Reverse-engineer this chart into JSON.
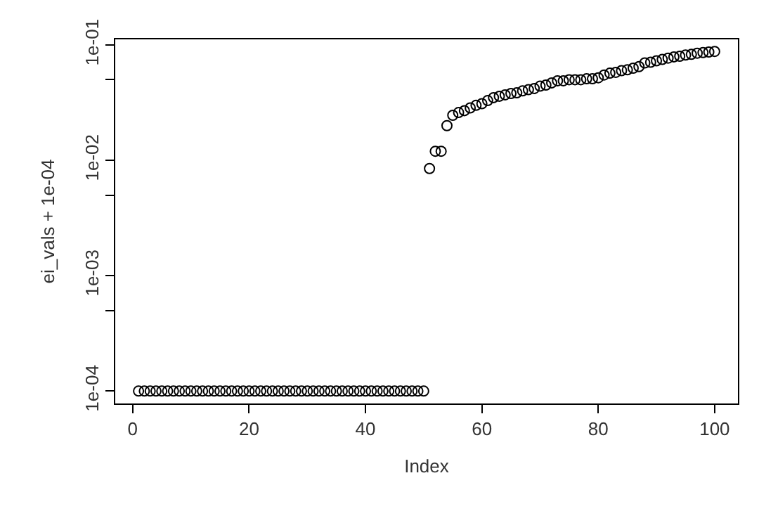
{
  "chart_data": {
    "type": "scatter",
    "xlabel": "Index",
    "ylabel": "ei_vals + 1e-04",
    "x": [
      1,
      2,
      3,
      4,
      5,
      6,
      7,
      8,
      9,
      10,
      11,
      12,
      13,
      14,
      15,
      16,
      17,
      18,
      19,
      20,
      21,
      22,
      23,
      24,
      25,
      26,
      27,
      28,
      29,
      30,
      31,
      32,
      33,
      34,
      35,
      36,
      37,
      38,
      39,
      40,
      41,
      42,
      43,
      44,
      45,
      46,
      47,
      48,
      49,
      50,
      51,
      52,
      53,
      54,
      55,
      56,
      57,
      58,
      59,
      60,
      61,
      62,
      63,
      64,
      65,
      66,
      67,
      68,
      69,
      70,
      71,
      72,
      73,
      74,
      75,
      76,
      77,
      78,
      79,
      80,
      81,
      82,
      83,
      84,
      85,
      86,
      87,
      88,
      89,
      90,
      91,
      92,
      93,
      94,
      95,
      96,
      97,
      98,
      99,
      100
    ],
    "series": [
      {
        "color": "#000000",
        "values": [
          0.0001,
          0.0001,
          0.0001,
          0.0001,
          0.0001,
          0.0001,
          0.0001,
          0.0001,
          0.0001,
          0.0001,
          0.0001,
          0.0001,
          0.0001,
          0.0001,
          0.0001,
          0.0001,
          0.0001,
          0.0001,
          0.0001,
          0.0001,
          0.0001,
          0.0001,
          0.0001,
          0.0001,
          0.0001,
          0.0001,
          0.0001,
          0.0001,
          0.0001,
          0.0001,
          0.0001,
          0.0001,
          0.0001,
          0.0001,
          0.0001,
          0.0001,
          0.0001,
          0.0001,
          0.0001,
          0.0001,
          0.0001,
          0.0001,
          0.0001,
          0.0001,
          0.0001,
          0.0001,
          0.0001,
          0.0001,
          0.0001,
          0.0001,
          0.0085,
          0.012,
          0.012,
          0.02,
          0.0246,
          0.026,
          0.027,
          0.0285,
          0.03,
          0.031,
          0.033,
          0.035,
          0.036,
          0.037,
          0.038,
          0.0385,
          0.04,
          0.041,
          0.042,
          0.044,
          0.045,
          0.047,
          0.049,
          0.049,
          0.05,
          0.05,
          0.05,
          0.051,
          0.051,
          0.052,
          0.055,
          0.057,
          0.058,
          0.06,
          0.061,
          0.063,
          0.065,
          0.07,
          0.071,
          0.073,
          0.075,
          0.077,
          0.079,
          0.08,
          0.082,
          0.083,
          0.085,
          0.086,
          0.087,
          0.088
        ]
      }
    ],
    "xlim": [
      -3,
      104
    ],
    "xticks": [
      0,
      20,
      40,
      60,
      80,
      100
    ],
    "ylim": [
      7.8e-05,
      0.112
    ],
    "yticks": [
      {
        "value": 0.0001,
        "label": "1e-04"
      },
      {
        "value": 0.0005,
        "label": null
      },
      {
        "value": 0.001,
        "label": "1e-03"
      },
      {
        "value": 0.005,
        "label": null
      },
      {
        "value": 0.01,
        "label": "1e-02"
      },
      {
        "value": 0.05,
        "label": null
      },
      {
        "value": 0.1,
        "label": "1e-01"
      }
    ],
    "log": true,
    "marker": "circle"
  }
}
